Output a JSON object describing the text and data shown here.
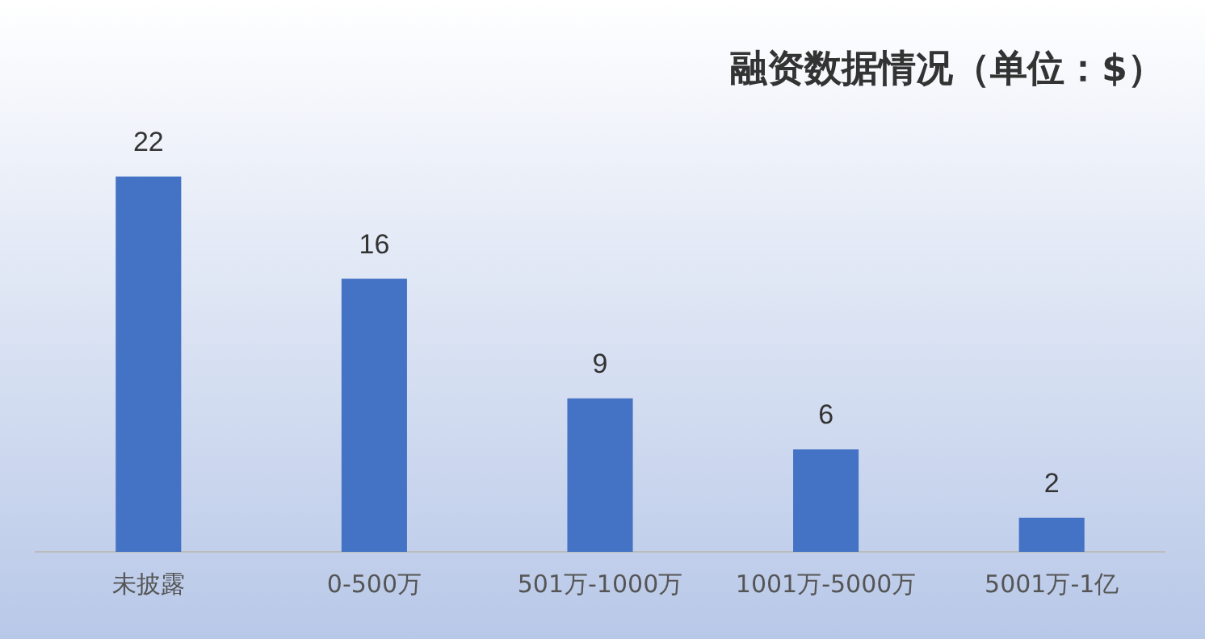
{
  "chart_data": {
    "type": "bar",
    "title": "融资数据情况（单位：$）",
    "categories": [
      "未披露",
      "0-500万",
      "501万-1000万",
      "1001万-5000万",
      "5001万-1亿"
    ],
    "values": [
      22,
      16,
      9,
      6,
      2
    ],
    "color": "#4472c4",
    "data_labels": true,
    "grid": false,
    "legend": false,
    "tick_labels": "x"
  }
}
